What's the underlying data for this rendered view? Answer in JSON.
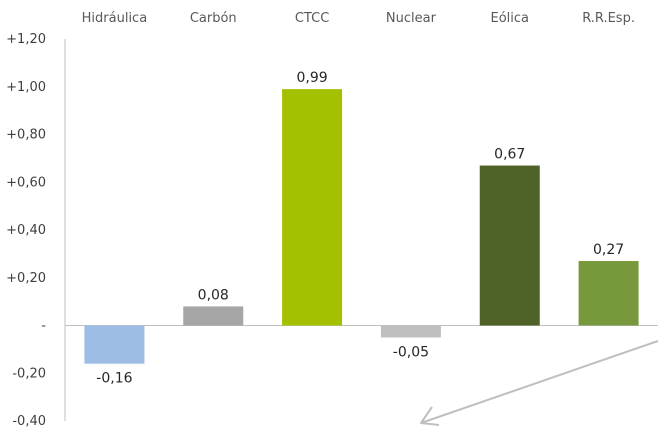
{
  "chart_data": {
    "type": "bar",
    "categories": [
      "Hidráulica",
      "Carbón",
      "CTCC",
      "Nuclear",
      "Eólica",
      "R.R.Esp."
    ],
    "values": [
      -0.16,
      0.08,
      0.99,
      -0.05,
      0.67,
      0.27
    ],
    "value_labels": [
      "-0,16",
      "0,08",
      "0,99",
      "-0,05",
      "0,67",
      "0,27"
    ],
    "colors": [
      "#9dbde4",
      "#a6a6a6",
      "#a5c000",
      "#bfbfbf",
      "#4f6228",
      "#77993c"
    ],
    "ylim": [
      -0.4,
      1.2
    ],
    "yticks": [
      1.2,
      1.0,
      0.8,
      0.6,
      0.4,
      0.2,
      0.0,
      -0.2,
      -0.4
    ],
    "ytick_labels": [
      "+1,20",
      "+1,00",
      "+0,80",
      "+0,60",
      "+0,40",
      "+0,20",
      "-",
      "-0,20",
      "-0,40"
    ],
    "category_axis_position": "top",
    "grid": false,
    "legend": "none",
    "annotation": "arrow pointing down-left",
    "annotation_color": "#bfbfbf"
  }
}
